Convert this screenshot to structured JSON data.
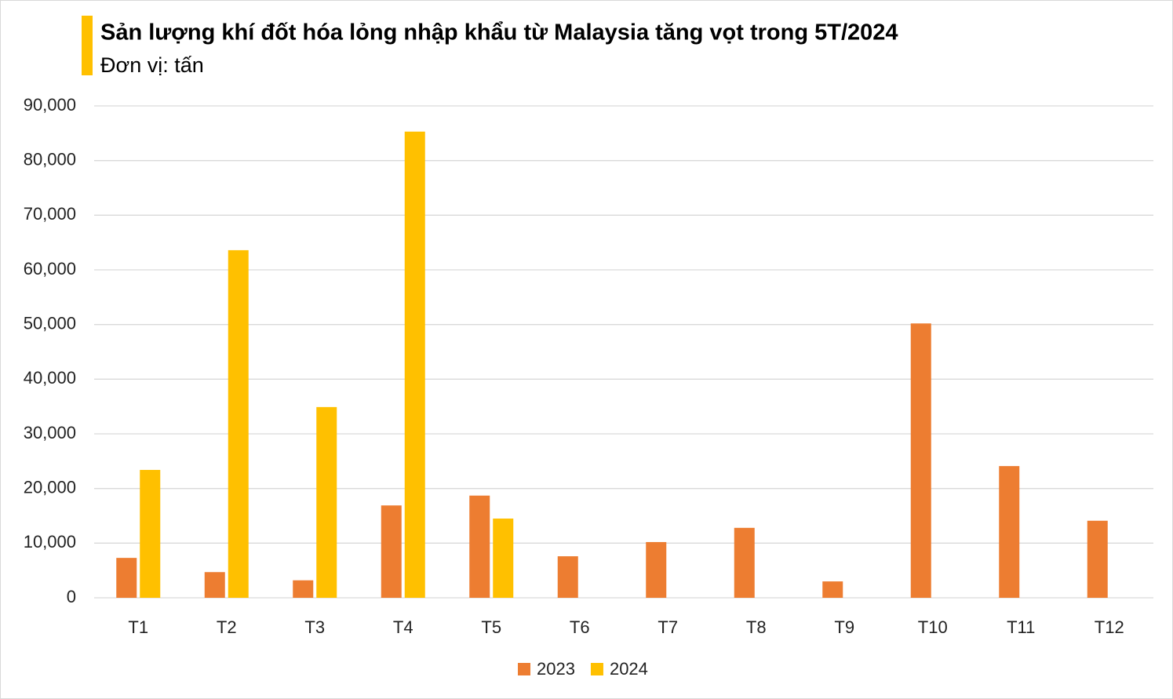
{
  "chart_data": {
    "type": "bar",
    "title": "Sản lượng khí đốt hóa lỏng nhập khẩu từ Malaysia tăng vọt trong 5T/2024",
    "subtitle": "Đơn vị: tấn",
    "categories": [
      "T1",
      "T2",
      "T3",
      "T4",
      "T5",
      "T6",
      "T7",
      "T8",
      "T9",
      "T10",
      "T11",
      "T12"
    ],
    "series": [
      {
        "name": "2023",
        "color": "#ED7D31",
        "values": [
          7300,
          4700,
          3200,
          16900,
          18700,
          7600,
          10200,
          12800,
          3000,
          50200,
          24100,
          14100
        ]
      },
      {
        "name": "2024",
        "color": "#FFC000",
        "values": [
          23400,
          63600,
          34900,
          85300,
          14500,
          null,
          null,
          null,
          null,
          null,
          null,
          null
        ]
      }
    ],
    "ylim": [
      0,
      90000
    ],
    "yticks": [
      0,
      {
        "value": 10000,
        "label": "10,000"
      },
      {
        "value": 20000,
        "label": "20,000"
      },
      {
        "value": 30000,
        "label": "30,000"
      },
      {
        "value": 40000,
        "label": "40,000"
      },
      {
        "value": 50000,
        "label": "50,000"
      },
      {
        "value": 60000,
        "label": "60,000"
      },
      {
        "value": 70000,
        "label": "70,000"
      },
      {
        "value": 80000,
        "label": "80,000"
      },
      {
        "value": 90000,
        "label": "90,000"
      }
    ],
    "grid": true,
    "legend": "bottom"
  }
}
